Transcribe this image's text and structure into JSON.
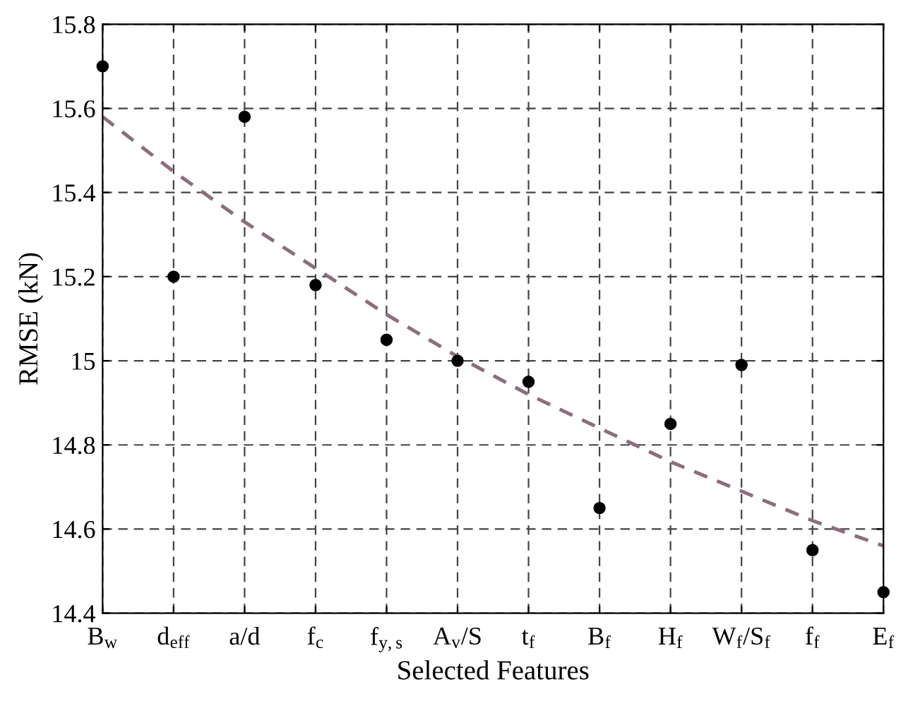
{
  "chart_data": {
    "type": "scatter",
    "xlabel": "Selected Features",
    "ylabel": "RMSE (kN)",
    "categories": [
      "B$_{w}$",
      "d$_{eff}$",
      "a/d",
      "f$_{c}$",
      "f$_{y,s}$",
      "A$_{v}$/S",
      "t$_{f}$",
      "B$_{f}$",
      "H$_{f}$",
      "W$_{f}$/S$_{f}$",
      "f$_{f}$",
      "E$_{f}$"
    ],
    "series": [
      {
        "color": "#000000",
        "marker": "circle",
        "values": [
          15.7,
          15.2,
          15.58,
          15.18,
          15.05,
          15.0,
          14.95,
          14.65,
          14.85,
          14.99,
          14.55,
          14.45
        ]
      },
      {
        "type": "line",
        "color": "#8c6d7e",
        "line_style": "dashed",
        "values": [
          15.58,
          15.45,
          15.33,
          15.22,
          15.11,
          15.01,
          14.92,
          14.84,
          14.76,
          14.69,
          14.62,
          14.56
        ]
      }
    ],
    "ylim": [
      14.4,
      15.8
    ],
    "yticks": [
      14.4,
      14.6,
      14.8,
      15,
      15.2,
      15.4,
      15.6,
      15.8
    ],
    "grid": true
  }
}
